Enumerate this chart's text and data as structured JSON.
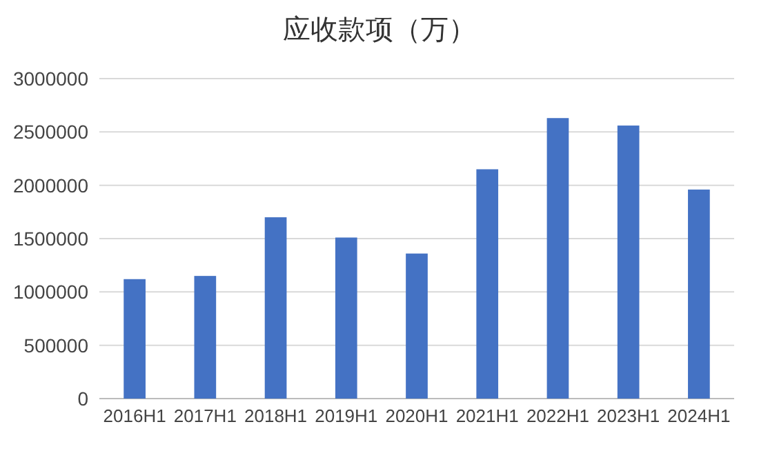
{
  "chart_data": {
    "type": "bar",
    "title": "应收款项（万）",
    "categories": [
      "2016H1",
      "2017H1",
      "2018H1",
      "2019H1",
      "2020H1",
      "2021H1",
      "2022H1",
      "2023H1",
      "2024H1"
    ],
    "values": [
      1120000,
      1150000,
      1700000,
      1510000,
      1360000,
      2150000,
      2630000,
      2560000,
      1960000
    ],
    "color": "#4472c4",
    "ylim": [
      0,
      3000000
    ],
    "yticks": [
      0,
      500000,
      1000000,
      1500000,
      2000000,
      2500000,
      3000000
    ],
    "grid": "y"
  }
}
